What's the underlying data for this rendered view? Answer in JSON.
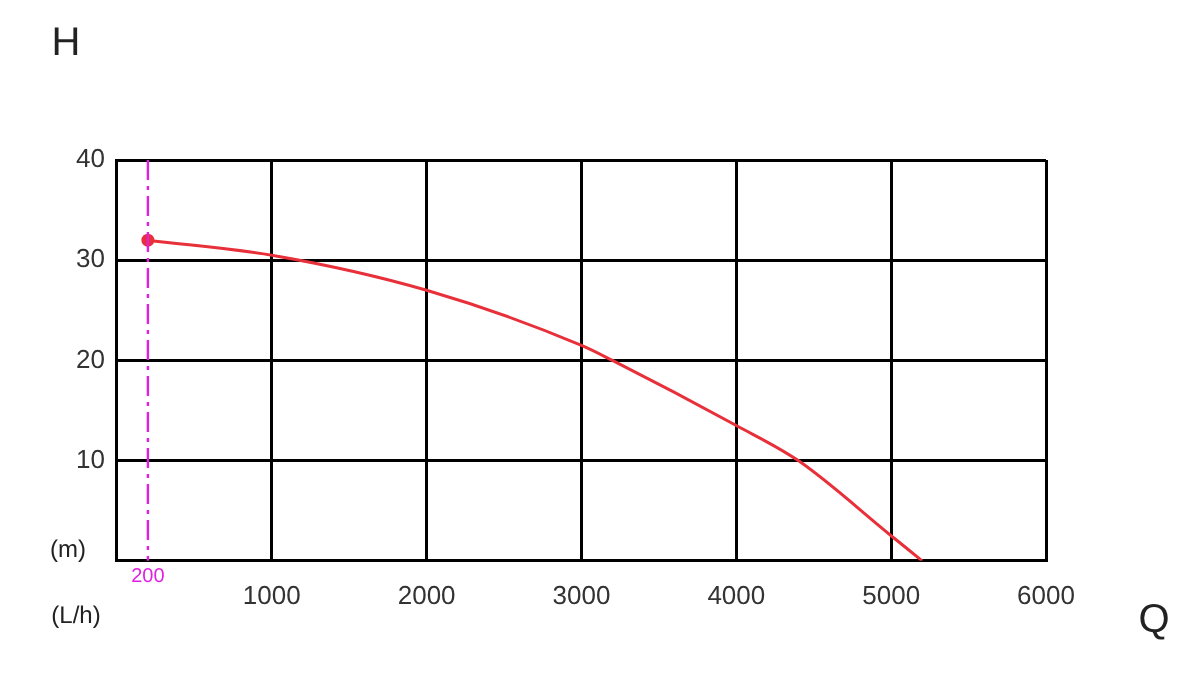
{
  "chart_data": {
    "type": "line",
    "xlabel": "Q",
    "ylabel": "H",
    "annotations": [
      "(m)",
      "(L/h)"
    ],
    "x": [
      200,
      1000,
      2000,
      3000,
      3200,
      4000,
      4400,
      5000,
      5200
    ],
    "series": [
      {
        "color": "#e8303a",
        "values": [
          32,
          30.5,
          27,
          21.5,
          20,
          13.5,
          10,
          2.5,
          0
        ],
        "marker": "none"
      },
      {
        "type": "scatter",
        "color": "#e8303a",
        "x": [
          200
        ],
        "values": [
          32
        ],
        "marker": "circle"
      }
    ],
    "xlim": [
      0,
      6000
    ],
    "xticks": [
      {
        "value": 0,
        "label": null
      },
      1000,
      2000,
      3000,
      4000,
      5000,
      6000
    ],
    "ylim": [
      0,
      40
    ],
    "yticks": [
      {
        "value": 0,
        "label": null
      },
      10,
      20,
      30,
      40
    ],
    "grid": true,
    "legend": false,
    "ref_lines": [
      {
        "axis": "x",
        "value": 200,
        "label": "200",
        "color": "#e020e0",
        "line_style": "dashdot"
      }
    ]
  }
}
